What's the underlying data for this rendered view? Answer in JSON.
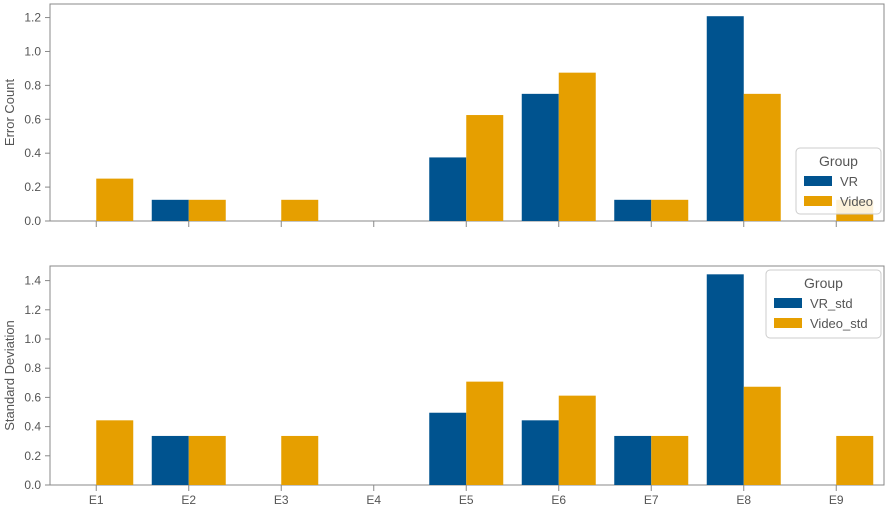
{
  "chart_data": [
    {
      "type": "bar",
      "title": "",
      "xlabel": "",
      "ylabel": "Error Count",
      "categories": [
        "E1",
        "E2",
        "E3",
        "E4",
        "E5",
        "E6",
        "E7",
        "E8",
        "E9"
      ],
      "show_x_tick_labels": false,
      "yticks": [
        "0.0",
        "0.2",
        "0.4",
        "0.6",
        "0.8",
        "1.0",
        "1.2"
      ],
      "ylim": [
        0,
        1.28
      ],
      "grid": false,
      "legend": {
        "title": "Group",
        "placement": "right"
      },
      "series": [
        {
          "name": "VR",
          "color": "#00538f",
          "values": [
            0,
            0.125,
            0,
            0,
            0.375,
            0.75,
            0.125,
            1.208,
            0
          ]
        },
        {
          "name": "Video",
          "color": "#e69f00",
          "values": [
            0.25,
            0.125,
            0.125,
            0,
            0.625,
            0.875,
            0.125,
            0.75,
            0.125
          ]
        }
      ]
    },
    {
      "type": "bar",
      "title": "",
      "xlabel": "",
      "ylabel": "Standard Deviation",
      "categories": [
        "E1",
        "E2",
        "E3",
        "E4",
        "E5",
        "E6",
        "E7",
        "E8",
        "E9"
      ],
      "show_x_tick_labels": true,
      "yticks": [
        "0.0",
        "0.2",
        "0.4",
        "0.6",
        "0.8",
        "1.0",
        "1.2",
        "1.4"
      ],
      "ylim": [
        0,
        1.5
      ],
      "grid": false,
      "legend": {
        "title": "Group",
        "placement": "top-right"
      },
      "series": [
        {
          "name": "VR_std",
          "color": "#00538f",
          "values": [
            0,
            0.336,
            0,
            0,
            0.495,
            0.443,
            0.336,
            1.443,
            0
          ]
        },
        {
          "name": "Video_std",
          "color": "#e69f00",
          "values": [
            0.443,
            0.336,
            0.336,
            0,
            0.708,
            0.612,
            0.336,
            0.673,
            0.336
          ]
        }
      ]
    }
  ]
}
